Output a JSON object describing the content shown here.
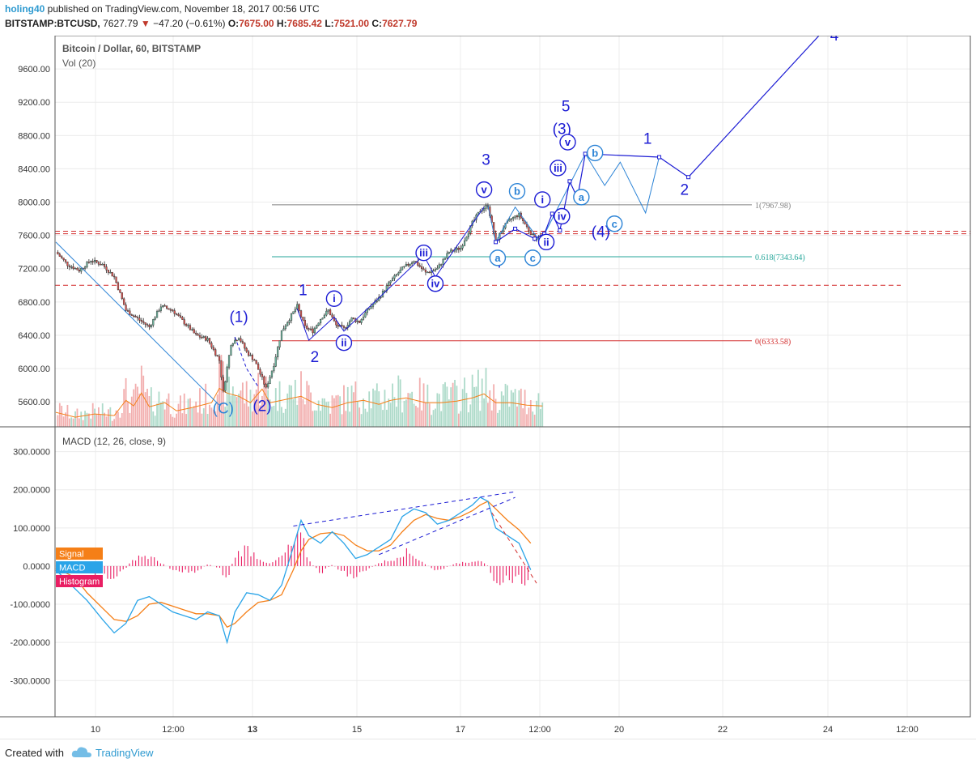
{
  "header": {
    "username": "holing40",
    "published_text": " published on TradingView.com, November 18, 2017 00:56 UTC",
    "symbol": "BITSTAMP:BTCUSD,",
    "price": "7627.79",
    "change": "−47.20 (−0.61%)",
    "o_label": "O:",
    "o_value": "7675.00",
    "h_label": "H:",
    "h_value": "7685.42",
    "l_label": "L:",
    "l_value": "7521.00",
    "c_label": "C:",
    "c_value": "7627.79"
  },
  "footer": {
    "created_with": "Created with",
    "brand": "TradingView"
  },
  "colors": {
    "up": "#6fb8a0",
    "down": "#d9534f",
    "wave": "#1c1cd4",
    "wave_light": "#2b83d6",
    "macd": "#2aa4e8",
    "signal": "#f57f17",
    "histogram": "#e91e63",
    "fib_grey": "#808080",
    "fib_green": "#26a69a",
    "fib_red": "#d32f2f"
  },
  "chart_data": [
    {
      "type": "candlestick",
      "title": "Bitcoin / Dollar, 60, BITSTAMP",
      "indicator_label": "Vol (20)",
      "ylim": [
        5300,
        10000
      ],
      "yticks": [
        "9600.00",
        "9200.00",
        "8800.00",
        "8400.00",
        "8000.00",
        "7600.00",
        "7200.00",
        "6800.00",
        "6400.00",
        "6000.00",
        "5600.00"
      ],
      "ytick_values": [
        9600,
        9200,
        8800,
        8400,
        8000,
        7600,
        7200,
        6800,
        6400,
        6000,
        5600
      ],
      "xticks": [
        "10",
        "12:00",
        "13",
        "15",
        "17",
        "12:00",
        "20",
        "22",
        "24",
        "12:00"
      ],
      "price_path_hourly": [
        [
          0,
          7400
        ],
        [
          6,
          7250
        ],
        [
          12,
          7180
        ],
        [
          18,
          7300
        ],
        [
          24,
          7250
        ],
        [
          30,
          7100
        ],
        [
          36,
          6700
        ],
        [
          42,
          6600
        ],
        [
          48,
          6500
        ],
        [
          54,
          6750
        ],
        [
          60,
          6700
        ],
        [
          66,
          6550
        ],
        [
          72,
          6400
        ],
        [
          78,
          6350
        ],
        [
          84,
          6100
        ],
        [
          86,
          5720
        ],
        [
          90,
          6300
        ],
        [
          94,
          6380
        ],
        [
          98,
          6200
        ],
        [
          102,
          6100
        ],
        [
          106,
          5880
        ],
        [
          108,
          5760
        ],
        [
          112,
          6050
        ],
        [
          116,
          6450
        ],
        [
          120,
          6600
        ],
        [
          124,
          6750
        ],
        [
          128,
          6500
        ],
        [
          132,
          6450
        ],
        [
          136,
          6600
        ],
        [
          140,
          6700
        ],
        [
          144,
          6520
        ],
        [
          148,
          6480
        ],
        [
          152,
          6600
        ],
        [
          156,
          6560
        ],
        [
          160,
          6700
        ],
        [
          166,
          6850
        ],
        [
          172,
          7050
        ],
        [
          178,
          7200
        ],
        [
          184,
          7300
        ],
        [
          190,
          7150
        ],
        [
          196,
          7200
        ],
        [
          202,
          7400
        ],
        [
          208,
          7450
        ],
        [
          214,
          7750
        ],
        [
          218,
          7900
        ],
        [
          222,
          7960
        ],
        [
          226,
          7520
        ],
        [
          230,
          7700
        ],
        [
          234,
          7800
        ],
        [
          238,
          7850
        ],
        [
          242,
          7700
        ],
        [
          246,
          7560
        ],
        [
          250,
          7600
        ]
      ],
      "volume_path_hourly": [
        [
          0,
          180
        ],
        [
          10,
          120
        ],
        [
          20,
          160
        ],
        [
          30,
          140
        ],
        [
          36,
          330
        ],
        [
          40,
          260
        ],
        [
          44,
          420
        ],
        [
          48,
          250
        ],
        [
          56,
          300
        ],
        [
          62,
          200
        ],
        [
          70,
          240
        ],
        [
          80,
          300
        ],
        [
          84,
          480
        ],
        [
          88,
          420
        ],
        [
          94,
          380
        ],
        [
          100,
          300
        ],
        [
          106,
          470
        ],
        [
          110,
          300
        ],
        [
          118,
          340
        ],
        [
          126,
          380
        ],
        [
          134,
          280
        ],
        [
          142,
          240
        ],
        [
          150,
          300
        ],
        [
          158,
          330
        ],
        [
          166,
          280
        ],
        [
          172,
          330
        ],
        [
          180,
          360
        ],
        [
          190,
          300
        ],
        [
          198,
          300
        ],
        [
          206,
          320
        ],
        [
          214,
          360
        ],
        [
          220,
          410
        ],
        [
          226,
          300
        ],
        [
          234,
          300
        ],
        [
          242,
          270
        ],
        [
          250,
          260
        ]
      ],
      "fib_levels": [
        {
          "label": "1(7967.98)",
          "value": 7967.98
        },
        {
          "label": "0.618(7343.64)",
          "value": 7343.64
        },
        {
          "label": "0(6333.58)",
          "value": 6333.58
        }
      ],
      "dashed_levels": [
        7650,
        7620,
        7000
      ],
      "wave_path_dark": [
        [
          226,
          7520
        ],
        [
          236,
          7680
        ],
        [
          246,
          7560
        ],
        [
          251,
          7620
        ],
        [
          255,
          7860
        ],
        [
          259,
          7660
        ],
        [
          264,
          8250
        ],
        [
          268,
          8050
        ],
        [
          272,
          8580
        ],
        [
          310,
          8540
        ],
        [
          325,
          8300
        ],
        [
          400,
          10200
        ]
      ],
      "wave_path_light": [
        [
          222,
          7960
        ],
        [
          226,
          7520
        ],
        [
          236,
          7940
        ],
        [
          249,
          7520
        ],
        [
          272,
          8580
        ],
        [
          282,
          8200
        ],
        [
          290,
          8480
        ],
        [
          303,
          7870
        ],
        [
          310,
          8540
        ]
      ],
      "wave_labels": [
        {
          "t": "(1)",
          "x": 94,
          "y": 6560,
          "c": "wave"
        },
        {
          "t": "(2)",
          "x": 106,
          "y": 5490,
          "c": "wave"
        },
        {
          "t": "(C)",
          "x": 86,
          "y": 5460,
          "c": "wave_light"
        },
        {
          "t": "1",
          "x": 127,
          "y": 6880,
          "c": "wave"
        },
        {
          "t": "2",
          "x": 133,
          "y": 6080,
          "c": "wave"
        },
        {
          "t": "3",
          "x": 221,
          "y": 8450,
          "c": "wave"
        },
        {
          "t": "4",
          "x": 227,
          "y": 7210,
          "c": "wave"
        },
        {
          "t": "5",
          "x": 262,
          "y": 9090,
          "c": "wave"
        },
        {
          "t": "(3)",
          "x": 260,
          "y": 8820,
          "c": "wave"
        },
        {
          "t": "(4)",
          "x": 280,
          "y": 7580,
          "c": "wave"
        },
        {
          "t": "1",
          "x": 304,
          "y": 8700,
          "c": "wave"
        },
        {
          "t": "2",
          "x": 323,
          "y": 8090,
          "c": "wave"
        },
        {
          "t": "4",
          "x": 400,
          "y": 9940,
          "c": "wave"
        }
      ],
      "circle_labels": [
        {
          "t": "i",
          "x": 143,
          "y": 6840,
          "c": "wave"
        },
        {
          "t": "ii",
          "x": 148,
          "y": 6310,
          "c": "wave"
        },
        {
          "t": "iii",
          "x": 189,
          "y": 7390,
          "c": "wave"
        },
        {
          "t": "iv",
          "x": 195,
          "y": 7020,
          "c": "wave"
        },
        {
          "t": "v",
          "x": 220,
          "y": 8150,
          "c": "wave"
        },
        {
          "t": "a",
          "x": 227,
          "y": 7330,
          "c": "wave_light"
        },
        {
          "t": "b",
          "x": 237,
          "y": 8130,
          "c": "wave_light"
        },
        {
          "t": "c",
          "x": 245,
          "y": 7330,
          "c": "wave_light"
        },
        {
          "t": "i",
          "x": 250,
          "y": 8030,
          "c": "wave"
        },
        {
          "t": "ii",
          "x": 252,
          "y": 7520,
          "c": "wave"
        },
        {
          "t": "iii",
          "x": 258,
          "y": 8410,
          "c": "wave"
        },
        {
          "t": "iv",
          "x": 260,
          "y": 7830,
          "c": "wave"
        },
        {
          "t": "v",
          "x": 263,
          "y": 8720,
          "c": "wave"
        },
        {
          "t": "a",
          "x": 270,
          "y": 8060,
          "c": "wave_light"
        },
        {
          "t": "b",
          "x": 277,
          "y": 8590,
          "c": "wave_light"
        },
        {
          "t": "c",
          "x": 287,
          "y": 7740,
          "c": "wave_light"
        }
      ]
    },
    {
      "type": "line",
      "title": "MACD (12, 26, close, 9)",
      "ylim": [
        -395,
        365
      ],
      "yticks": [
        "300.0000",
        "200.0000",
        "100.0000",
        "0.0000",
        "-100.0000",
        "-200.0000",
        "-300.0000"
      ],
      "ytick_values": [
        300,
        200,
        100,
        0,
        -100,
        -200,
        -300
      ],
      "legend": [
        "Signal",
        "MACD",
        "Histogram"
      ],
      "series": [
        {
          "name": "MACD",
          "values": [
            [
              0,
              -10
            ],
            [
              10,
              -60
            ],
            [
              16,
              -90
            ],
            [
              24,
              -140
            ],
            [
              30,
              -175
            ],
            [
              36,
              -150
            ],
            [
              42,
              -90
            ],
            [
              48,
              -80
            ],
            [
              54,
              -100
            ],
            [
              60,
              -120
            ],
            [
              66,
              -130
            ],
            [
              72,
              -140
            ],
            [
              78,
              -120
            ],
            [
              84,
              -130
            ],
            [
              88,
              -200
            ],
            [
              92,
              -120
            ],
            [
              98,
              -70
            ],
            [
              104,
              -75
            ],
            [
              110,
              -90
            ],
            [
              116,
              -50
            ],
            [
              122,
              50
            ],
            [
              126,
              120
            ],
            [
              130,
              80
            ],
            [
              136,
              60
            ],
            [
              142,
              90
            ],
            [
              148,
              60
            ],
            [
              154,
              20
            ],
            [
              160,
              30
            ],
            [
              166,
              50
            ],
            [
              172,
              70
            ],
            [
              178,
              130
            ],
            [
              184,
              150
            ],
            [
              190,
              140
            ],
            [
              196,
              110
            ],
            [
              202,
              120
            ],
            [
              208,
              140
            ],
            [
              214,
              160
            ],
            [
              218,
              180
            ],
            [
              222,
              170
            ],
            [
              226,
              100
            ],
            [
              232,
              80
            ],
            [
              238,
              60
            ],
            [
              244,
              -10
            ]
          ]
        },
        {
          "name": "Signal",
          "values": [
            [
              0,
              -5
            ],
            [
              10,
              -30
            ],
            [
              16,
              -70
            ],
            [
              24,
              -110
            ],
            [
              30,
              -140
            ],
            [
              36,
              -145
            ],
            [
              42,
              -130
            ],
            [
              48,
              -100
            ],
            [
              54,
              -95
            ],
            [
              60,
              -105
            ],
            [
              66,
              -115
            ],
            [
              72,
              -125
            ],
            [
              78,
              -125
            ],
            [
              84,
              -130
            ],
            [
              88,
              -160
            ],
            [
              92,
              -150
            ],
            [
              98,
              -120
            ],
            [
              104,
              -95
            ],
            [
              110,
              -90
            ],
            [
              116,
              -75
            ],
            [
              122,
              -10
            ],
            [
              126,
              40
            ],
            [
              130,
              70
            ],
            [
              136,
              85
            ],
            [
              142,
              88
            ],
            [
              148,
              80
            ],
            [
              154,
              55
            ],
            [
              160,
              40
            ],
            [
              166,
              40
            ],
            [
              172,
              55
            ],
            [
              178,
              90
            ],
            [
              184,
              120
            ],
            [
              190,
              135
            ],
            [
              196,
              125
            ],
            [
              202,
              120
            ],
            [
              208,
              130
            ],
            [
              214,
              145
            ],
            [
              218,
              160
            ],
            [
              222,
              170
            ],
            [
              226,
              150
            ],
            [
              232,
              120
            ],
            [
              238,
              95
            ],
            [
              244,
              60
            ]
          ]
        }
      ],
      "histogram_hourly": [
        [
          0,
          5
        ],
        [
          10,
          -10
        ],
        [
          16,
          -20
        ],
        [
          24,
          -25
        ],
        [
          30,
          -35
        ],
        [
          36,
          -5
        ],
        [
          42,
          30
        ],
        [
          48,
          25
        ],
        [
          54,
          10
        ],
        [
          60,
          -10
        ],
        [
          66,
          -15
        ],
        [
          72,
          -15
        ],
        [
          78,
          5
        ],
        [
          84,
          -5
        ],
        [
          88,
          -40
        ],
        [
          92,
          30
        ],
        [
          98,
          50
        ],
        [
          104,
          25
        ],
        [
          110,
          5
        ],
        [
          116,
          25
        ],
        [
          122,
          60
        ],
        [
          126,
          80
        ],
        [
          130,
          15
        ],
        [
          136,
          -20
        ],
        [
          142,
          5
        ],
        [
          148,
          -20
        ],
        [
          154,
          -30
        ],
        [
          160,
          -10
        ],
        [
          166,
          10
        ],
        [
          172,
          15
        ],
        [
          178,
          40
        ],
        [
          184,
          30
        ],
        [
          190,
          5
        ],
        [
          196,
          -15
        ],
        [
          202,
          0
        ],
        [
          208,
          10
        ],
        [
          214,
          15
        ],
        [
          218,
          20
        ],
        [
          222,
          0
        ],
        [
          226,
          -40
        ],
        [
          232,
          -40
        ],
        [
          238,
          -35
        ],
        [
          244,
          -60
        ]
      ],
      "trendlines": [
        {
          "from": [
            122,
            105
          ],
          "to": [
            236,
            195
          ]
        },
        {
          "from": [
            166,
            30
          ],
          "to": [
            236,
            180
          ]
        },
        {
          "from": [
            224,
            140
          ],
          "to": [
            247,
            -45
          ]
        }
      ]
    }
  ]
}
